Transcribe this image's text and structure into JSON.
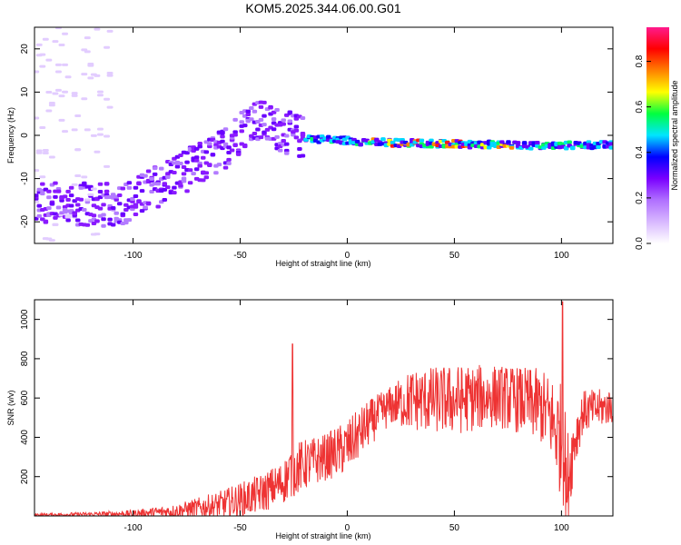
{
  "title": "KOM5.2025.344.06.00.G01",
  "chart_data": [
    {
      "type": "heatmap",
      "panel": "spectrogram",
      "xlabel": "Height of straight line (km)",
      "ylabel": "Frequency (Hz)",
      "xlim": [
        -146,
        124
      ],
      "ylim": [
        -25,
        25
      ],
      "xticks": [
        -100,
        -50,
        0,
        50,
        100
      ],
      "yticks": [
        -20,
        -10,
        0,
        10,
        20
      ],
      "colorbar": {
        "label": "Normalized spectral amplitude",
        "range": [
          0.0,
          0.95
        ],
        "ticks": [
          0.0,
          0.2,
          0.4,
          0.6,
          0.8
        ],
        "colors": [
          "#ffffff",
          "#d8b8ff",
          "#b070ff",
          "#7a00ff",
          "#0000ff",
          "#00e5ff",
          "#00ff40",
          "#ffff00",
          "#ff8000",
          "#ff0000",
          "#ff1a8c"
        ]
      },
      "signal_trace": {
        "x": [
          -120,
          -110,
          -100,
          -90,
          -80,
          -70,
          -60,
          -50,
          -45,
          -40,
          -35,
          -30,
          -25,
          -20,
          -10,
          0,
          10,
          20,
          30,
          40,
          50,
          60,
          70,
          80,
          90,
          100,
          105,
          110,
          124
        ],
        "y": [
          -16,
          -16,
          -15,
          -12,
          -9,
          -7,
          -4,
          1,
          4,
          3,
          2,
          1,
          0,
          -0.5,
          -1,
          -1.2,
          -1.5,
          -1.7,
          -1.8,
          -1.9,
          -2.0,
          -2.1,
          -2.2,
          -2.3,
          -2.4,
          -2.4,
          -2.3,
          -2.2,
          -2.3
        ]
      }
    },
    {
      "type": "line",
      "panel": "snr",
      "xlabel": "Height of straight line (km)",
      "ylabel": "SNR (v/v)",
      "xlim": [
        -146,
        124
      ],
      "ylim": [
        0,
        1100
      ],
      "xticks": [
        -100,
        -50,
        0,
        50,
        100
      ],
      "yticks": [
        200,
        400,
        600,
        800,
        1000
      ],
      "color": "#ee3333",
      "envelope": {
        "x": [
          -146,
          -120,
          -100,
          -80,
          -60,
          -50,
          -40,
          -30,
          -26,
          -20,
          -10,
          0,
          10,
          20,
          30,
          50,
          70,
          80,
          90,
          95,
          100,
          103,
          106,
          110,
          124
        ],
        "center": [
          5,
          8,
          12,
          25,
          55,
          80,
          115,
          170,
          230,
          260,
          300,
          350,
          470,
          560,
          590,
          590,
          610,
          590,
          560,
          500,
          380,
          200,
          380,
          530,
          560
        ],
        "amplitude": [
          8,
          12,
          18,
          35,
          70,
          90,
          100,
          110,
          140,
          130,
          120,
          140,
          120,
          100,
          160,
          180,
          160,
          170,
          190,
          220,
          300,
          260,
          150,
          110,
          90
        ]
      },
      "spikes": [
        {
          "x": -25.5,
          "y": 875
        },
        {
          "x": 100.5,
          "y": 1090
        },
        {
          "x": 102.5,
          "y": 70
        }
      ]
    }
  ]
}
